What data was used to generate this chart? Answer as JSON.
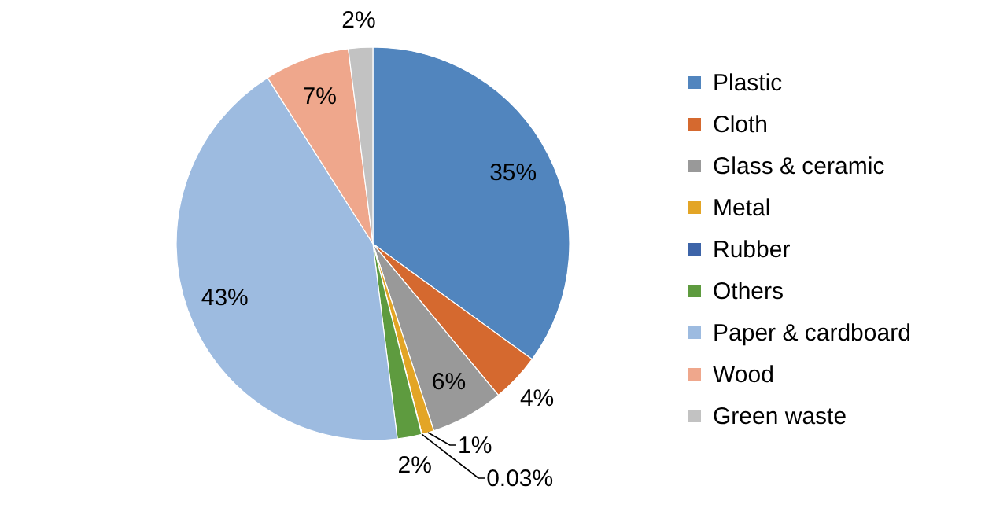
{
  "chart_data": {
    "type": "pie",
    "categories": [
      "Plastic",
      "Cloth",
      "Glass & ceramic",
      "Metal",
      "Rubber",
      "Others",
      "Paper & cardboard",
      "Wood",
      "Green waste"
    ],
    "values": [
      35,
      4,
      6,
      1,
      0.03,
      2,
      43,
      7,
      2
    ],
    "colors": [
      "#5185be",
      "#d5692f",
      "#999999",
      "#e3a526",
      "#3d64a8",
      "#5e9b3f",
      "#9dbbe0",
      "#efa78c",
      "#c2c2c2"
    ],
    "value_labels": [
      "35%",
      "4%",
      "6%",
      "1%",
      "0.03%",
      "2%",
      "43%",
      "7%",
      "2%"
    ],
    "legend": "right"
  }
}
